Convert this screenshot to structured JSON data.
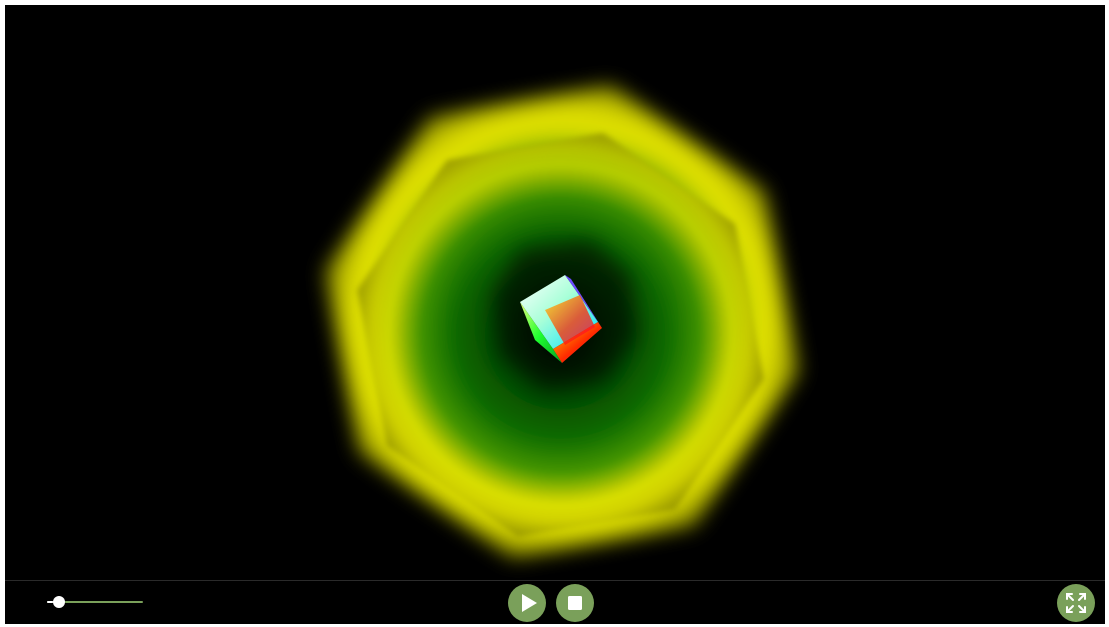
{
  "app": {
    "type": "media-player"
  },
  "scene": {
    "background_color": "#000000",
    "octagon_outer_color": "#ffff00",
    "octagon_mid_color": "#1f8a00",
    "octagon_inner_color": "#000000",
    "cube_colors": [
      "#ffffff",
      "#00ffff",
      "#ff0000",
      "#00ff00",
      "#0000ff",
      "#ff00ff"
    ]
  },
  "controls": {
    "volume": {
      "level": 0.12,
      "track_color": "#7aa05a",
      "thumb_color": "#ffffff"
    },
    "play_button": {
      "icon": "play-icon",
      "color": "#7aa05a"
    },
    "stop_button": {
      "icon": "stop-icon",
      "color": "#7aa05a"
    },
    "fullscreen_button": {
      "icon": "fullscreen-icon",
      "color": "#7aa05a"
    }
  }
}
